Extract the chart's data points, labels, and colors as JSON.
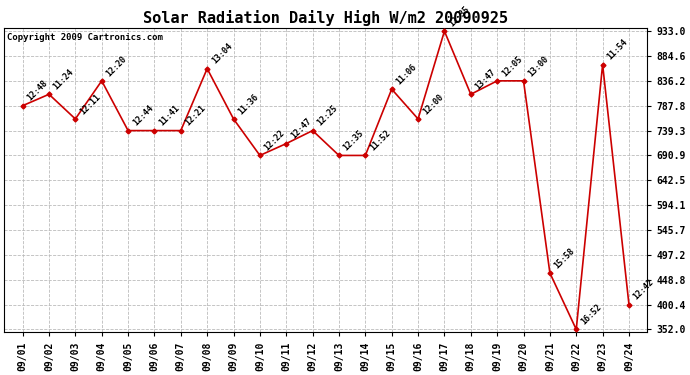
{
  "title": "Solar Radiation Daily High W/m2 20090925",
  "copyright": "Copyright 2009 Cartronics.com",
  "dates": [
    "09/01",
    "09/02",
    "09/03",
    "09/04",
    "09/05",
    "09/06",
    "09/07",
    "09/08",
    "09/09",
    "09/10",
    "09/11",
    "09/12",
    "09/13",
    "09/14",
    "09/15",
    "09/16",
    "09/17",
    "09/18",
    "09/19",
    "09/20",
    "09/21",
    "09/22",
    "09/23",
    "09/24"
  ],
  "values": [
    787.8,
    810.0,
    762.0,
    836.2,
    739.3,
    739.3,
    739.3,
    860.0,
    762.0,
    690.9,
    714.0,
    739.3,
    690.9,
    690.9,
    820.0,
    762.0,
    933.0,
    810.0,
    836.2,
    836.2,
    462.0,
    352.0,
    868.0,
    400.4
  ],
  "point_labels": [
    "12:48",
    "11:24",
    "12:11",
    "12:20",
    "12:44",
    "11:41",
    "12:21",
    "13:04",
    "11:36",
    "12:22",
    "12:47",
    "12:25",
    "12:35",
    "11:52",
    "11:06",
    "12:00",
    "12:35",
    "13:47",
    "12:05",
    "13:00",
    "15:58",
    "16:52",
    "11:54",
    "12:42"
  ],
  "ytick_values": [
    352.0,
    400.4,
    448.8,
    497.2,
    545.7,
    594.1,
    642.5,
    690.9,
    739.3,
    787.8,
    836.2,
    884.6,
    933.0
  ],
  "ylim_min": 352.0,
  "ylim_max": 933.0,
  "line_color": "#cc0000",
  "bg_color": "#ffffff",
  "grid_color": "#bbbbbb",
  "title_fontsize": 11,
  "annot_fontsize": 6,
  "tick_fontsize": 7,
  "copyright_fontsize": 6.5
}
